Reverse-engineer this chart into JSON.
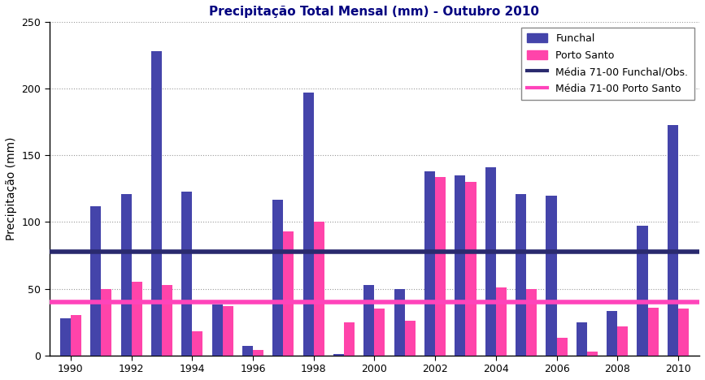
{
  "title": "Precipitação Total Mensal (mm) - Outubro 2010",
  "ylabel": "Precipitação (mm)",
  "years": [
    1990,
    1991,
    1992,
    1993,
    1994,
    1995,
    1996,
    1997,
    1998,
    1999,
    2000,
    2001,
    2002,
    2003,
    2004,
    2005,
    2006,
    2007,
    2008,
    2009,
    2010
  ],
  "funchal": [
    28,
    112,
    121,
    228,
    123,
    38,
    7,
    117,
    197,
    1,
    53,
    50,
    138,
    135,
    141,
    121,
    120,
    25,
    33,
    97,
    173
  ],
  "porto_santo": [
    30,
    50,
    55,
    53,
    18,
    37,
    4,
    93,
    100,
    25,
    35,
    26,
    134,
    130,
    51,
    50,
    13,
    3,
    22,
    36,
    35
  ],
  "media_funchal": 78,
  "media_porto_santo": 40,
  "funchal_color": "#4444AA",
  "porto_santo_color": "#FF44AA",
  "media_funchal_color": "#2a2a6e",
  "media_porto_santo_color": "#FF44BB",
  "ylim": [
    0,
    250
  ],
  "yticks": [
    0,
    50,
    100,
    150,
    200,
    250
  ],
  "xtick_labels": [
    "1990",
    "1992",
    "1994",
    "1996",
    "1998",
    "2000",
    "2002",
    "2004",
    "2006",
    "2008",
    "2010"
  ],
  "legend_funchal": "Funchal",
  "legend_porto_santo": "Porto Santo",
  "legend_media_funchal": "Média 71-00 Funchal/Obs.",
  "legend_media_porto_santo": "Média 71-00 Porto Santo",
  "bar_width": 0.35,
  "background_color": "#ffffff",
  "grid_color": "#999999"
}
